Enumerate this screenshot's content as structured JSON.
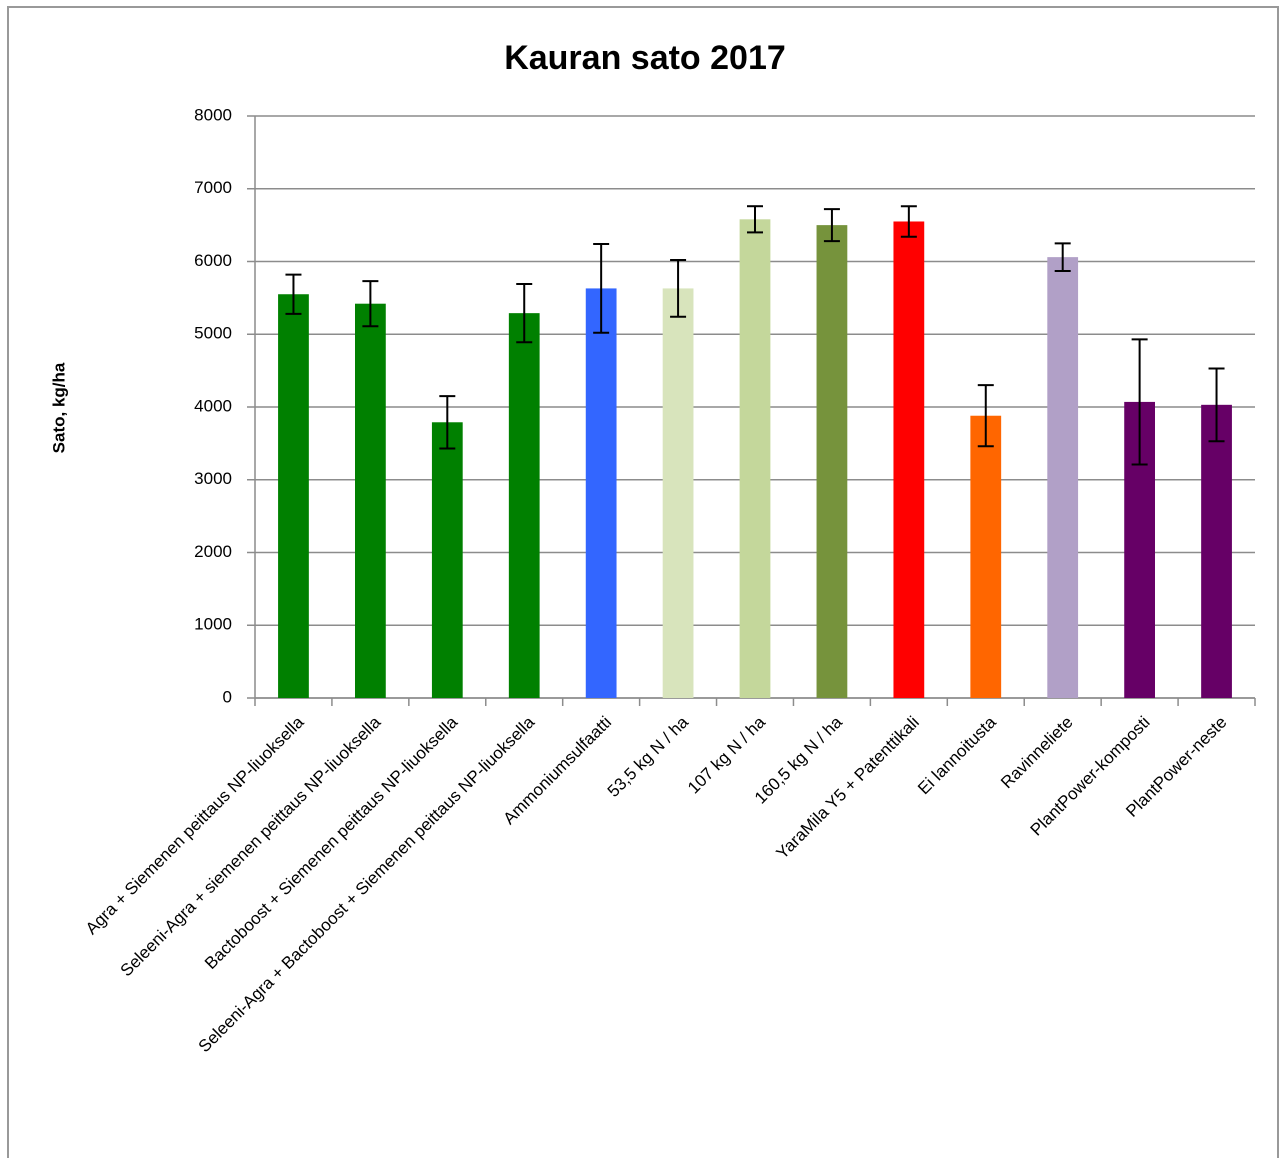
{
  "chart_data": {
    "type": "bar",
    "title": "Kauran sato 2017",
    "y_label": "Sato, kg/ha",
    "categories": [
      "Agra + Siemenen peittaus NP-liuoksella",
      "Seleeni-Agra + siemenen peittaus NP-liuoksella",
      "Bactoboost + Siemenen peittaus NP-liuoksella",
      "Seleeni-Agra + Bactoboost + Siemenen peittaus NP-liuoksella",
      "Ammoniumsulfaatti",
      "53,5 kg N / ha",
      "107 kg N / ha",
      "160,5 kg N / ha",
      "YaraMila Y5 + Patenttikali",
      "Ei lannoitusta",
      "Ravinneliete",
      "PlantPower-komposti",
      "PlantPower-neste"
    ],
    "values": [
      5550,
      5420,
      3790,
      5290,
      5630,
      5630,
      6580,
      6500,
      6550,
      3880,
      6060,
      4070,
      4030
    ],
    "errors": [
      270,
      310,
      360,
      400,
      610,
      390,
      180,
      220,
      210,
      420,
      190,
      860,
      500
    ],
    "colors": [
      "#008000",
      "#008000",
      "#008000",
      "#008000",
      "#3366ff",
      "#d8e4bc",
      "#c4d79b",
      "#76933c",
      "#ff0000",
      "#ff6600",
      "#b1a0c7",
      "#660066",
      "#660066"
    ],
    "ylim": [
      0,
      8000
    ],
    "yticks": [
      0,
      1000,
      2000,
      3000,
      4000,
      5000,
      6000,
      7000,
      8000
    ],
    "grid": true
  }
}
